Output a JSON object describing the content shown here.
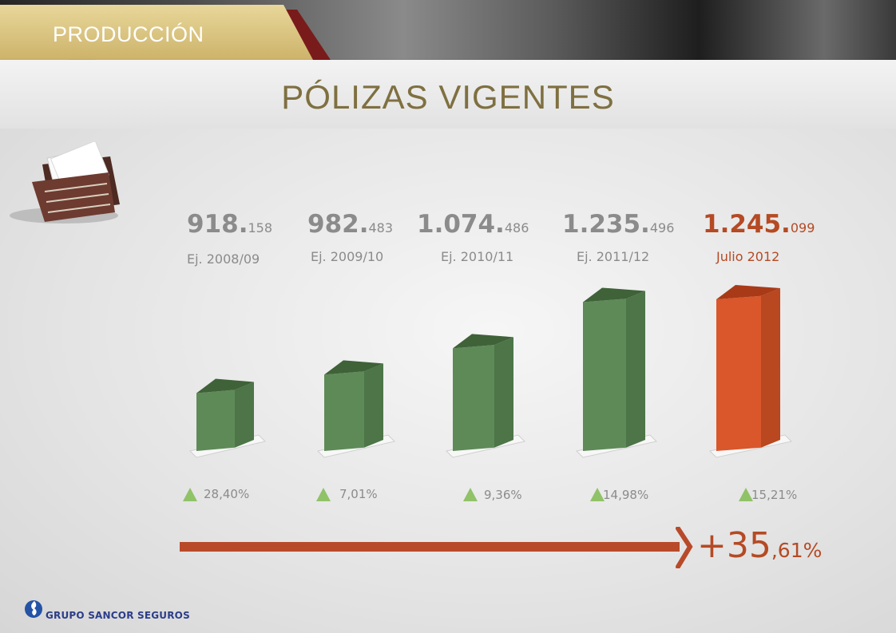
{
  "header": {
    "section": "PRODUCCIÓN",
    "title": "PÓLIZAS VIGENTES"
  },
  "chart_data": {
    "type": "bar",
    "categories": [
      "Ej. 2008/09",
      "Ej. 2009/10",
      "Ej. 2010/11",
      "Ej. 2011/12",
      "Julio 2012"
    ],
    "values": [
      918158,
      982483,
      1074486,
      1235496,
      1245099
    ],
    "value_labels": [
      {
        "main": "918.",
        "minor": "158"
      },
      {
        "main": "982.",
        "minor": "483"
      },
      {
        "main": "1.074.",
        "minor": "486"
      },
      {
        "main": "1.235.",
        "minor": "496"
      },
      {
        "main": "1.245.",
        "minor": "099"
      }
    ],
    "growth": [
      "28,40%",
      "7,01%",
      "9,36%",
      "14,98%",
      "15,21%"
    ],
    "total_growth": {
      "main": "+35",
      "minor": ",61%"
    },
    "colors": {
      "bar": "#5e8a58",
      "bar_top": "#3f6238",
      "highlight_bar": "#d9572b",
      "highlight_text": "#b54a24",
      "growth_icon": "#90c268"
    },
    "title": "PÓLIZAS VIGENTES"
  },
  "brand": {
    "name": "GRUPO SANCOR SEGUROS",
    "logo_icon": "sancor-flame-icon"
  }
}
